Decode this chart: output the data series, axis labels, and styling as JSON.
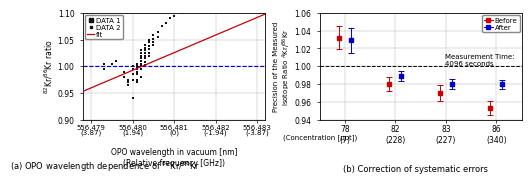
{
  "left": {
    "scatter_data": [
      [
        556.4793,
        1.005
      ],
      [
        556.4793,
        0.995
      ],
      [
        556.4795,
        1.005
      ],
      [
        556.4796,
        1.01
      ],
      [
        556.4798,
        0.99
      ],
      [
        556.4798,
        0.98
      ],
      [
        556.4799,
        0.975
      ],
      [
        556.4799,
        0.97
      ],
      [
        556.4799,
        0.965
      ],
      [
        556.48,
        1.0
      ],
      [
        556.48,
        0.995
      ],
      [
        556.48,
        0.985
      ],
      [
        556.48,
        0.975
      ],
      [
        556.48,
        0.94
      ],
      [
        556.4801,
        1.005
      ],
      [
        556.4801,
        1.0
      ],
      [
        556.4801,
        0.998
      ],
      [
        556.4801,
        0.995
      ],
      [
        556.4801,
        0.99
      ],
      [
        556.4801,
        0.985
      ],
      [
        556.4801,
        0.975
      ],
      [
        556.4801,
        0.97
      ],
      [
        556.4802,
        1.03
      ],
      [
        556.4802,
        1.025
      ],
      [
        556.4802,
        1.02
      ],
      [
        556.4802,
        1.015
      ],
      [
        556.4802,
        1.01
      ],
      [
        556.4802,
        1.005
      ],
      [
        556.4802,
        1.0
      ],
      [
        556.4802,
        0.995
      ],
      [
        556.4802,
        0.98
      ],
      [
        556.4803,
        1.04
      ],
      [
        556.4803,
        1.035
      ],
      [
        556.4803,
        1.03
      ],
      [
        556.4803,
        1.025
      ],
      [
        556.4803,
        1.02
      ],
      [
        556.4803,
        1.015
      ],
      [
        556.4803,
        1.008
      ],
      [
        556.4803,
        1.003
      ],
      [
        556.4804,
        1.05
      ],
      [
        556.4804,
        1.045
      ],
      [
        556.4804,
        1.038
      ],
      [
        556.4804,
        1.032
      ],
      [
        556.4804,
        1.025
      ],
      [
        556.4804,
        1.02
      ],
      [
        556.4805,
        1.058
      ],
      [
        556.4805,
        1.052
      ],
      [
        556.4805,
        1.045
      ],
      [
        556.4805,
        1.04
      ],
      [
        556.4806,
        1.065
      ],
      [
        556.4806,
        1.055
      ],
      [
        556.4807,
        1.075
      ],
      [
        556.4808,
        1.082
      ],
      [
        556.4809,
        1.09
      ],
      [
        556.481,
        1.095
      ],
      [
        556.4812,
        1.1
      ]
    ],
    "fit_x": [
      556.4788,
      556.4832
    ],
    "fit_y": [
      0.953,
      1.098
    ],
    "hline_y": 1.0,
    "xlim": [
      556.4788,
      556.4832
    ],
    "ylim": [
      0.9,
      1.1
    ],
    "xticks": [
      556.479,
      556.48,
      556.481,
      556.482,
      556.483
    ],
    "xtick_labels_nm": [
      "556.479",
      "556.480",
      "556.481",
      "556.482",
      "556.483"
    ],
    "xtick_labels_ghz": [
      "(3.87)",
      "(1.94)",
      "(0)",
      "(-1.94)",
      "(-3.87)"
    ],
    "yticks": [
      0.9,
      0.95,
      1.0,
      1.05,
      1.1
    ],
    "ylabel": "$^{82}$Kr/$^{86}$Kr ratio",
    "xlabel_line1": "OPO wavelength in vacuum [nm]",
    "xlabel_line2": "(Relative frequency [GHz])",
    "fit_color": "#cc0000",
    "hline_color": "#0000cc",
    "scatter_color": "#111111"
  },
  "right": {
    "x_positions": [
      1,
      2,
      3,
      4
    ],
    "x_labels_top": [
      "78",
      "82",
      "83",
      "86"
    ],
    "x_labels_bot": [
      "(7)",
      "(228)",
      "(227)",
      "(340)"
    ],
    "x_label_prefix": "(Concentration [ppt])",
    "before_means": [
      1.032,
      0.98,
      0.97,
      0.953
    ],
    "before_errs": [
      0.013,
      0.008,
      0.009,
      0.008
    ],
    "after_means": [
      1.029,
      0.989,
      0.98,
      0.98
    ],
    "after_errs": [
      0.014,
      0.006,
      0.006,
      0.005
    ],
    "hline_y": 1.0,
    "ylim": [
      0.94,
      1.06
    ],
    "yticks": [
      0.94,
      0.96,
      0.98,
      1.0,
      1.02,
      1.04,
      1.06
    ],
    "ylabel": "Precision of the Measured\nIsotope Ratio $^{A}$Kr/$^{86}$Kr",
    "before_color": "#cc0000",
    "after_color": "#0000cc",
    "legend_before": "Before",
    "legend_after": "After",
    "annotation": "Measurement Time:\n4096 seconds"
  },
  "caption_left": "(a) OPO wavelength dependence of $^{82}$Kr/$^{86}$Kr",
  "caption_right": "(b) Correction of systematic errors"
}
